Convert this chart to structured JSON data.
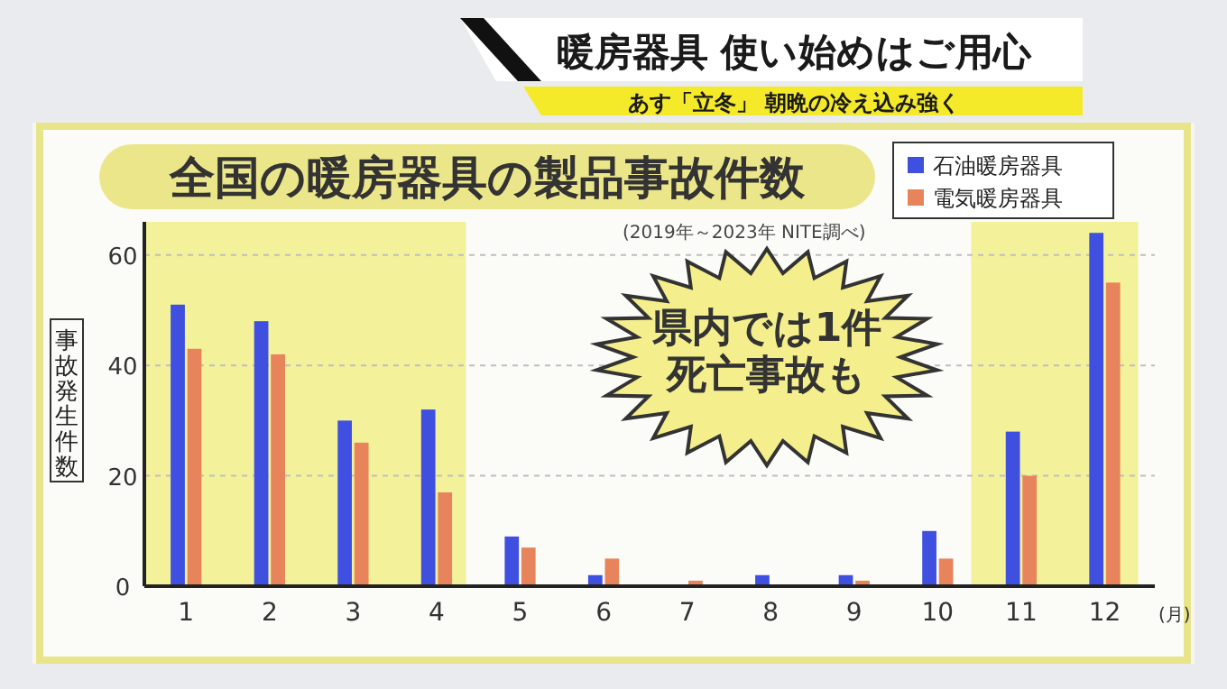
{
  "chart_data": {
    "type": "bar",
    "title": "全国の暖房器具の製品事故件数",
    "x": [
      1,
      2,
      3,
      4,
      5,
      6,
      7,
      8,
      9,
      10,
      11,
      12
    ],
    "xlabel": "(月)",
    "ylabel": "事故発生件数",
    "series": [
      {
        "name": "石油暖房器具",
        "color": "#3f4fe0",
        "values": [
          51,
          48,
          30,
          32,
          9,
          2,
          0,
          2,
          2,
          10,
          28,
          64
        ]
      },
      {
        "name": "電気暖房器具",
        "color": "#e8845c",
        "values": [
          43,
          42,
          26,
          17,
          7,
          5,
          1,
          0,
          1,
          5,
          20,
          55
        ]
      }
    ],
    "xlim": [
      0.5,
      12.6
    ],
    "ylim": [
      0,
      66
    ],
    "xticks": [
      1,
      2,
      3,
      4,
      5,
      6,
      7,
      8,
      9,
      10,
      11,
      12
    ],
    "yticks": [
      0,
      20,
      40,
      60
    ],
    "grid": "y",
    "legend": "top right",
    "bands": [
      {
        "axis": "x",
        "from": 0.5,
        "to": 4.35,
        "color": "#f3f19a"
      },
      {
        "axis": "x",
        "from": 10.4,
        "to": 12.4,
        "color": "#f3f19a"
      }
    ],
    "annotations": [
      "暖房器具 使い始めはご用心",
      "あす「立冬」 朝晩の冷え込み強く",
      "(2019年～2023年 NITE調べ)",
      "県内では1件",
      "死亡事故も"
    ]
  }
}
